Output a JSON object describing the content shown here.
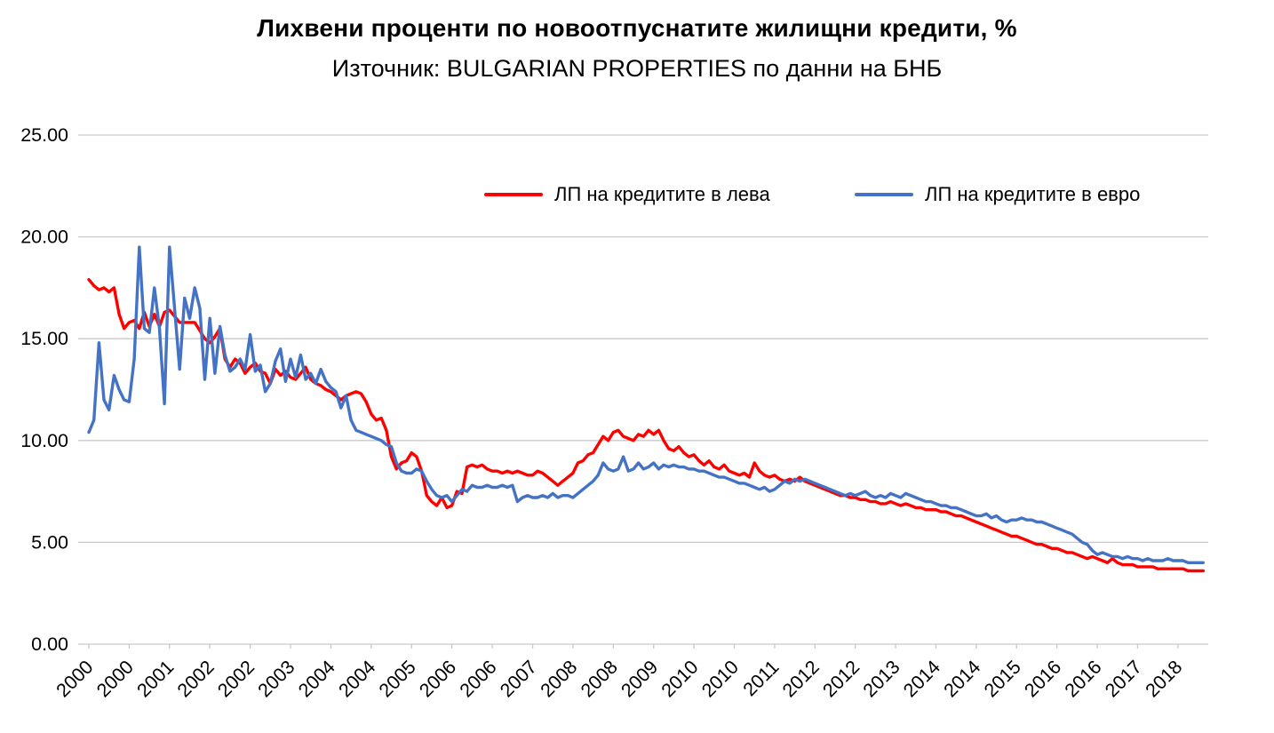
{
  "chart_data": {
    "type": "line",
    "title": "Лихвени проценти по новоотпуснатите жилищни кредити, %",
    "subtitle": "Източник: BULGARIAN PROPERTIES по данни на БНБ",
    "xlabel": "",
    "ylabel": "",
    "ylim": [
      0,
      25
    ],
    "y_tick_labels": [
      "0.00",
      "5.00",
      "10.00",
      "15.00",
      "20.00",
      "25.00"
    ],
    "x_domain": [
      2000,
      2018.5
    ],
    "x_sampling": "monthly",
    "x_start": "2000-01",
    "x_end": "2018-06",
    "x_tick_interval_months": 8,
    "x_tick_labels": [
      "2000",
      "2000",
      "2001",
      "2002",
      "2002",
      "2003",
      "2004",
      "2004",
      "2005",
      "2006",
      "2006",
      "2007",
      "2008",
      "2008",
      "2009",
      "2010",
      "2010",
      "2011",
      "2012",
      "2012",
      "2013",
      "2014",
      "2014",
      "2015",
      "2016",
      "2016",
      "2017",
      "2018"
    ],
    "grid": true,
    "legend_position": "inside-top-center",
    "colors": {
      "grid": "#c9c9c9",
      "text": "#000000",
      "background": "#ffffff"
    },
    "series": [
      {
        "name": "ЛП на кредитите в лева",
        "color": "#ff0000",
        "values": [
          17.9,
          17.6,
          17.4,
          17.5,
          17.3,
          17.5,
          16.2,
          15.5,
          15.8,
          15.9,
          15.5,
          16.3,
          15.6,
          16.2,
          15.6,
          16.3,
          16.4,
          16.1,
          15.8,
          15.8,
          15.8,
          15.8,
          15.4,
          15.0,
          14.8,
          15.1,
          15.5,
          14.0,
          13.6,
          14.0,
          13.8,
          13.3,
          13.6,
          13.8,
          13.4,
          13.3,
          12.8,
          13.5,
          13.2,
          13.4,
          13.1,
          13.0,
          13.3,
          13.6,
          13.0,
          12.8,
          12.7,
          12.5,
          12.4,
          12.2,
          12.0,
          12.2,
          12.3,
          12.4,
          12.3,
          11.9,
          11.3,
          11.0,
          11.1,
          10.5,
          9.2,
          8.6,
          8.9,
          9.0,
          9.4,
          9.2,
          8.5,
          7.3,
          7.0,
          6.8,
          7.2,
          6.7,
          6.8,
          7.5,
          7.4,
          8.7,
          8.8,
          8.7,
          8.8,
          8.6,
          8.5,
          8.5,
          8.4,
          8.5,
          8.4,
          8.5,
          8.4,
          8.3,
          8.3,
          8.5,
          8.4,
          8.2,
          8.0,
          7.8,
          8.0,
          8.2,
          8.4,
          8.9,
          9.0,
          9.3,
          9.4,
          9.8,
          10.2,
          10.0,
          10.4,
          10.5,
          10.2,
          10.1,
          10.0,
          10.3,
          10.2,
          10.5,
          10.3,
          10.5,
          10.0,
          9.6,
          9.5,
          9.7,
          9.4,
          9.2,
          9.3,
          9.0,
          8.8,
          9.0,
          8.7,
          8.6,
          8.8,
          8.5,
          8.4,
          8.3,
          8.4,
          8.2,
          8.9,
          8.5,
          8.3,
          8.2,
          8.3,
          8.1,
          8.0,
          8.1,
          8.0,
          8.2,
          8.0,
          7.9,
          7.8,
          7.7,
          7.6,
          7.5,
          7.4,
          7.3,
          7.3,
          7.2,
          7.2,
          7.1,
          7.1,
          7.0,
          7.0,
          6.9,
          6.9,
          7.0,
          6.9,
          6.8,
          6.9,
          6.8,
          6.7,
          6.7,
          6.6,
          6.6,
          6.6,
          6.5,
          6.5,
          6.4,
          6.3,
          6.3,
          6.2,
          6.1,
          6.0,
          5.9,
          5.8,
          5.7,
          5.6,
          5.5,
          5.4,
          5.3,
          5.3,
          5.2,
          5.1,
          5.0,
          4.9,
          4.9,
          4.8,
          4.7,
          4.7,
          4.6,
          4.5,
          4.5,
          4.4,
          4.3,
          4.2,
          4.3,
          4.2,
          4.1,
          4.0,
          4.2,
          4.0,
          3.9,
          3.9,
          3.9,
          3.8,
          3.8,
          3.8,
          3.8,
          3.7,
          3.7,
          3.7,
          3.7,
          3.7,
          3.7,
          3.6,
          3.6,
          3.6,
          3.6
        ]
      },
      {
        "name": "ЛП на кредитите в евро",
        "color": "#4472c4",
        "values": [
          10.4,
          11.0,
          14.8,
          12.0,
          11.5,
          13.2,
          12.5,
          12.0,
          11.9,
          14.0,
          19.5,
          15.5,
          15.3,
          17.5,
          15.5,
          11.8,
          19.5,
          16.5,
          13.5,
          17.0,
          16.0,
          17.5,
          16.5,
          13.0,
          16.0,
          13.3,
          15.6,
          14.2,
          13.4,
          13.6,
          14.0,
          13.5,
          15.2,
          13.4,
          13.7,
          12.4,
          12.8,
          13.9,
          14.5,
          12.9,
          14.0,
          13.1,
          14.2,
          13.0,
          13.3,
          12.8,
          13.5,
          12.9,
          12.6,
          12.4,
          11.6,
          12.2,
          11.0,
          10.5,
          10.4,
          10.3,
          10.2,
          10.1,
          10.0,
          9.8,
          9.7,
          8.9,
          8.5,
          8.4,
          8.4,
          8.6,
          8.5,
          8.0,
          7.6,
          7.3,
          7.2,
          7.3,
          7.0,
          7.3,
          7.6,
          7.5,
          7.8,
          7.7,
          7.7,
          7.8,
          7.7,
          7.7,
          7.8,
          7.7,
          7.8,
          7.0,
          7.2,
          7.3,
          7.2,
          7.2,
          7.3,
          7.2,
          7.4,
          7.2,
          7.3,
          7.3,
          7.2,
          7.4,
          7.6,
          7.8,
          8.0,
          8.3,
          8.9,
          8.6,
          8.5,
          8.6,
          9.2,
          8.5,
          8.6,
          8.9,
          8.6,
          8.7,
          8.9,
          8.6,
          8.8,
          8.7,
          8.8,
          8.7,
          8.7,
          8.6,
          8.6,
          8.5,
          8.5,
          8.4,
          8.3,
          8.2,
          8.2,
          8.1,
          8.0,
          7.9,
          7.9,
          7.8,
          7.7,
          7.6,
          7.7,
          7.5,
          7.6,
          7.8,
          8.0,
          7.9,
          8.1,
          8.0,
          8.1,
          8.0,
          7.9,
          7.8,
          7.7,
          7.6,
          7.5,
          7.4,
          7.3,
          7.4,
          7.3,
          7.4,
          7.5,
          7.3,
          7.2,
          7.3,
          7.2,
          7.4,
          7.3,
          7.2,
          7.4,
          7.3,
          7.2,
          7.1,
          7.0,
          7.0,
          6.9,
          6.8,
          6.8,
          6.7,
          6.7,
          6.6,
          6.5,
          6.4,
          6.3,
          6.3,
          6.4,
          6.2,
          6.3,
          6.1,
          6.0,
          6.1,
          6.1,
          6.2,
          6.1,
          6.1,
          6.0,
          6.0,
          5.9,
          5.8,
          5.7,
          5.6,
          5.5,
          5.4,
          5.2,
          5.0,
          4.9,
          4.6,
          4.4,
          4.5,
          4.4,
          4.3,
          4.3,
          4.2,
          4.3,
          4.2,
          4.2,
          4.1,
          4.2,
          4.1,
          4.1,
          4.1,
          4.2,
          4.1,
          4.1,
          4.1,
          4.0,
          4.0,
          4.0,
          4.0
        ]
      }
    ]
  }
}
